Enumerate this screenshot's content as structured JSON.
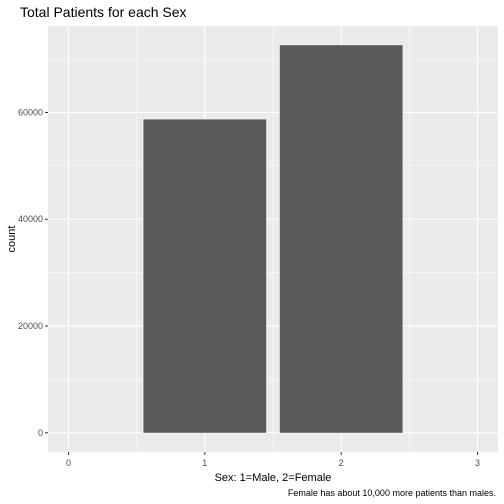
{
  "chart_data": {
    "type": "bar",
    "title": "Total Patients for each Sex",
    "xlabel": "Sex: 1=Male, 2=Female",
    "ylabel": "count",
    "caption": "Female has about 10,000 more patients than males.",
    "categories": [
      1,
      2
    ],
    "values": [
      58700,
      72600
    ],
    "xlim": [
      -0.15,
      3.15
    ],
    "ylim": [
      -3600,
      76200
    ],
    "x_ticks": [
      0,
      1,
      2,
      3
    ],
    "y_ticks": [
      0,
      20000,
      40000,
      60000
    ],
    "bar_width": 0.9,
    "grid": true,
    "colors": {
      "panel_background": "#ebebeb",
      "grid_major": "#ffffff",
      "bar_fill": "#595959",
      "tick_text": "#4d4d4d",
      "tick_mark": "#333333"
    }
  }
}
